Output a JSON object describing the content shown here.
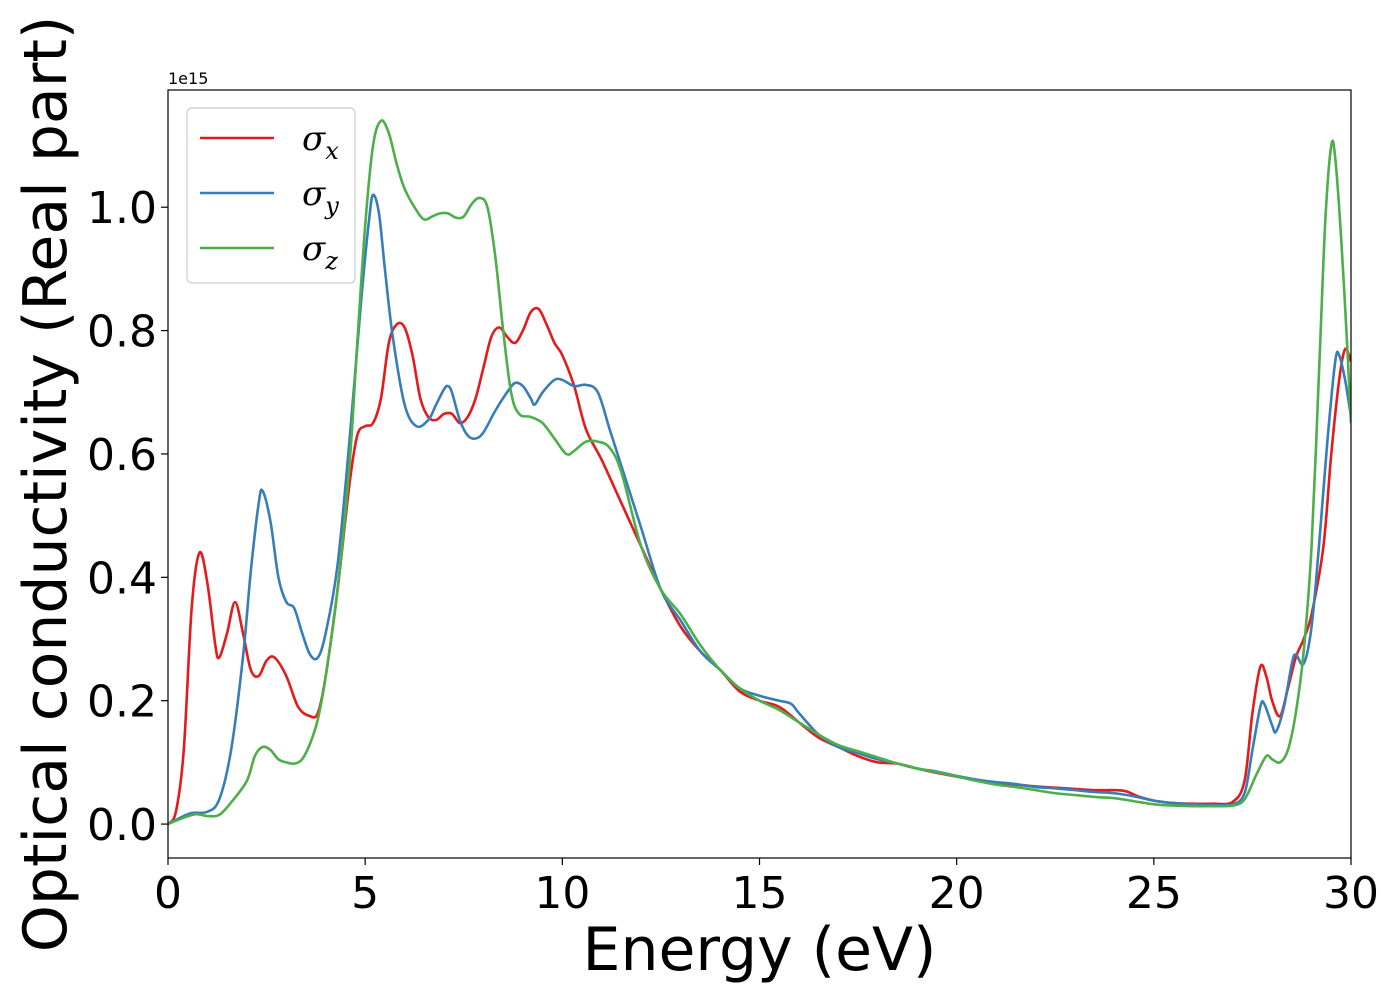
{
  "chart_data": {
    "type": "line",
    "title": "",
    "xlabel": "Energy (eV)",
    "ylabel": "Optical conductivity (Real part)",
    "y_offset_label": "1e15",
    "xlim": [
      0,
      30
    ],
    "ylim": [
      -0.055,
      1.19
    ],
    "xticks": [
      0,
      5,
      10,
      15,
      20,
      25,
      30
    ],
    "xtick_labels": [
      "0",
      "5",
      "10",
      "15",
      "20",
      "25",
      "30"
    ],
    "yticks": [
      0.0,
      0.2,
      0.4,
      0.6,
      0.8,
      1.0
    ],
    "ytick_labels": [
      "0.0",
      "0.2",
      "0.4",
      "0.6",
      "0.8",
      "1.0"
    ],
    "grid": false,
    "legend_position": "top-left",
    "series": [
      {
        "name": "σ",
        "subscript": "x",
        "color": "#e41a1c",
        "points": [
          [
            0,
            0
          ],
          [
            0.2,
            0.02
          ],
          [
            0.4,
            0.12
          ],
          [
            0.6,
            0.35
          ],
          [
            0.8,
            0.44
          ],
          [
            1.0,
            0.39
          ],
          [
            1.2,
            0.29
          ],
          [
            1.3,
            0.27
          ],
          [
            1.5,
            0.31
          ],
          [
            1.7,
            0.36
          ],
          [
            1.9,
            0.31
          ],
          [
            2.1,
            0.25
          ],
          [
            2.3,
            0.24
          ],
          [
            2.5,
            0.265
          ],
          [
            2.7,
            0.27
          ],
          [
            3.0,
            0.24
          ],
          [
            3.3,
            0.19
          ],
          [
            3.6,
            0.175
          ],
          [
            3.8,
            0.18
          ],
          [
            4.0,
            0.24
          ],
          [
            4.3,
            0.38
          ],
          [
            4.6,
            0.55
          ],
          [
            4.8,
            0.63
          ],
          [
            5.0,
            0.645
          ],
          [
            5.2,
            0.65
          ],
          [
            5.4,
            0.69
          ],
          [
            5.6,
            0.78
          ],
          [
            5.8,
            0.81
          ],
          [
            6.0,
            0.805
          ],
          [
            6.2,
            0.76
          ],
          [
            6.4,
            0.69
          ],
          [
            6.6,
            0.66
          ],
          [
            6.8,
            0.655
          ],
          [
            7.0,
            0.665
          ],
          [
            7.2,
            0.665
          ],
          [
            7.4,
            0.65
          ],
          [
            7.6,
            0.66
          ],
          [
            7.8,
            0.69
          ],
          [
            8.0,
            0.74
          ],
          [
            8.2,
            0.79
          ],
          [
            8.4,
            0.805
          ],
          [
            8.6,
            0.79
          ],
          [
            8.8,
            0.78
          ],
          [
            9.0,
            0.8
          ],
          [
            9.2,
            0.83
          ],
          [
            9.4,
            0.835
          ],
          [
            9.6,
            0.81
          ],
          [
            9.8,
            0.78
          ],
          [
            10.0,
            0.76
          ],
          [
            10.3,
            0.71
          ],
          [
            10.6,
            0.64
          ],
          [
            11.0,
            0.59
          ],
          [
            11.5,
            0.52
          ],
          [
            12.0,
            0.45
          ],
          [
            12.5,
            0.38
          ],
          [
            13.0,
            0.32
          ],
          [
            13.5,
            0.28
          ],
          [
            14.0,
            0.25
          ],
          [
            14.5,
            0.215
          ],
          [
            15.0,
            0.2
          ],
          [
            15.5,
            0.19
          ],
          [
            16.0,
            0.165
          ],
          [
            16.5,
            0.14
          ],
          [
            17.0,
            0.125
          ],
          [
            17.5,
            0.11
          ],
          [
            18.0,
            0.1
          ],
          [
            18.5,
            0.098
          ],
          [
            19.0,
            0.09
          ],
          [
            19.5,
            0.083
          ],
          [
            20.0,
            0.077
          ],
          [
            20.5,
            0.072
          ],
          [
            21.0,
            0.067
          ],
          [
            21.5,
            0.064
          ],
          [
            22.0,
            0.061
          ],
          [
            22.5,
            0.059
          ],
          [
            23.0,
            0.057
          ],
          [
            23.5,
            0.055
          ],
          [
            24.0,
            0.055
          ],
          [
            24.3,
            0.053
          ],
          [
            24.6,
            0.045
          ],
          [
            25.0,
            0.038
          ],
          [
            25.5,
            0.034
          ],
          [
            26.0,
            0.033
          ],
          [
            26.5,
            0.033
          ],
          [
            27.0,
            0.036
          ],
          [
            27.3,
            0.07
          ],
          [
            27.5,
            0.18
          ],
          [
            27.7,
            0.255
          ],
          [
            27.85,
            0.24
          ],
          [
            28.0,
            0.2
          ],
          [
            28.2,
            0.175
          ],
          [
            28.4,
            0.22
          ],
          [
            28.6,
            0.27
          ],
          [
            28.8,
            0.3
          ],
          [
            29.0,
            0.34
          ],
          [
            29.3,
            0.45
          ],
          [
            29.5,
            0.6
          ],
          [
            29.7,
            0.72
          ],
          [
            29.85,
            0.77
          ],
          [
            30.0,
            0.75
          ]
        ]
      },
      {
        "name": "σ",
        "subscript": "y",
        "color": "#377eb8",
        "points": [
          [
            0,
            0
          ],
          [
            0.3,
            0.01
          ],
          [
            0.6,
            0.018
          ],
          [
            1.0,
            0.02
          ],
          [
            1.3,
            0.04
          ],
          [
            1.6,
            0.12
          ],
          [
            1.9,
            0.27
          ],
          [
            2.1,
            0.41
          ],
          [
            2.3,
            0.52
          ],
          [
            2.4,
            0.54
          ],
          [
            2.6,
            0.49
          ],
          [
            2.8,
            0.4
          ],
          [
            3.0,
            0.36
          ],
          [
            3.2,
            0.35
          ],
          [
            3.4,
            0.31
          ],
          [
            3.6,
            0.275
          ],
          [
            3.8,
            0.27
          ],
          [
            4.0,
            0.31
          ],
          [
            4.3,
            0.42
          ],
          [
            4.6,
            0.62
          ],
          [
            4.9,
            0.85
          ],
          [
            5.1,
            0.98
          ],
          [
            5.2,
            1.02
          ],
          [
            5.35,
            0.99
          ],
          [
            5.5,
            0.9
          ],
          [
            5.7,
            0.79
          ],
          [
            6.0,
            0.68
          ],
          [
            6.3,
            0.645
          ],
          [
            6.6,
            0.655
          ],
          [
            6.8,
            0.68
          ],
          [
            7.0,
            0.705
          ],
          [
            7.1,
            0.71
          ],
          [
            7.2,
            0.7
          ],
          [
            7.4,
            0.655
          ],
          [
            7.6,
            0.63
          ],
          [
            7.8,
            0.625
          ],
          [
            8.0,
            0.635
          ],
          [
            8.3,
            0.67
          ],
          [
            8.6,
            0.7
          ],
          [
            8.8,
            0.715
          ],
          [
            9.0,
            0.71
          ],
          [
            9.2,
            0.69
          ],
          [
            9.3,
            0.68
          ],
          [
            9.5,
            0.7
          ],
          [
            9.8,
            0.72
          ],
          [
            10.0,
            0.72
          ],
          [
            10.3,
            0.71
          ],
          [
            10.6,
            0.712
          ],
          [
            10.9,
            0.7
          ],
          [
            11.2,
            0.64
          ],
          [
            11.5,
            0.58
          ],
          [
            12.0,
            0.48
          ],
          [
            12.5,
            0.38
          ],
          [
            13.0,
            0.33
          ],
          [
            13.5,
            0.28
          ],
          [
            14.0,
            0.25
          ],
          [
            14.5,
            0.22
          ],
          [
            15.0,
            0.208
          ],
          [
            15.5,
            0.2
          ],
          [
            15.8,
            0.195
          ],
          [
            16.0,
            0.18
          ],
          [
            16.5,
            0.145
          ],
          [
            17.0,
            0.125
          ],
          [
            17.5,
            0.115
          ],
          [
            18.0,
            0.105
          ],
          [
            18.5,
            0.098
          ],
          [
            19.0,
            0.09
          ],
          [
            19.5,
            0.085
          ],
          [
            20.0,
            0.078
          ],
          [
            20.5,
            0.072
          ],
          [
            21.0,
            0.068
          ],
          [
            21.5,
            0.065
          ],
          [
            22.0,
            0.06
          ],
          [
            22.5,
            0.058
          ],
          [
            23.0,
            0.055
          ],
          [
            23.5,
            0.052
          ],
          [
            24.0,
            0.05
          ],
          [
            24.5,
            0.045
          ],
          [
            25.0,
            0.038
          ],
          [
            25.5,
            0.034
          ],
          [
            26.0,
            0.032
          ],
          [
            26.5,
            0.031
          ],
          [
            27.0,
            0.032
          ],
          [
            27.3,
            0.05
          ],
          [
            27.5,
            0.12
          ],
          [
            27.7,
            0.19
          ],
          [
            27.8,
            0.195
          ],
          [
            28.0,
            0.16
          ],
          [
            28.1,
            0.15
          ],
          [
            28.3,
            0.19
          ],
          [
            28.5,
            0.26
          ],
          [
            28.6,
            0.275
          ],
          [
            28.8,
            0.26
          ],
          [
            29.0,
            0.32
          ],
          [
            29.2,
            0.46
          ],
          [
            29.4,
            0.62
          ],
          [
            29.6,
            0.75
          ],
          [
            29.7,
            0.76
          ],
          [
            29.85,
            0.72
          ],
          [
            30.0,
            0.66
          ]
        ]
      },
      {
        "name": "σ",
        "subscript": "z",
        "color": "#4daf4a",
        "points": [
          [
            0,
            0
          ],
          [
            0.3,
            0.008
          ],
          [
            0.7,
            0.016
          ],
          [
            1.0,
            0.013
          ],
          [
            1.3,
            0.015
          ],
          [
            1.6,
            0.035
          ],
          [
            2.0,
            0.07
          ],
          [
            2.2,
            0.11
          ],
          [
            2.4,
            0.125
          ],
          [
            2.6,
            0.12
          ],
          [
            2.8,
            0.105
          ],
          [
            3.0,
            0.1
          ],
          [
            3.2,
            0.098
          ],
          [
            3.4,
            0.105
          ],
          [
            3.6,
            0.13
          ],
          [
            3.8,
            0.17
          ],
          [
            4.0,
            0.24
          ],
          [
            4.3,
            0.38
          ],
          [
            4.6,
            0.58
          ],
          [
            4.8,
            0.78
          ],
          [
            5.0,
            0.97
          ],
          [
            5.2,
            1.1
          ],
          [
            5.4,
            1.14
          ],
          [
            5.6,
            1.12
          ],
          [
            5.8,
            1.07
          ],
          [
            6.0,
            1.03
          ],
          [
            6.3,
            0.995
          ],
          [
            6.5,
            0.98
          ],
          [
            6.7,
            0.985
          ],
          [
            6.9,
            0.99
          ],
          [
            7.1,
            0.99
          ],
          [
            7.3,
            0.983
          ],
          [
            7.5,
            0.985
          ],
          [
            7.7,
            1.005
          ],
          [
            7.9,
            1.015
          ],
          [
            8.1,
            1.0
          ],
          [
            8.3,
            0.92
          ],
          [
            8.5,
            0.8
          ],
          [
            8.7,
            0.7
          ],
          [
            8.9,
            0.665
          ],
          [
            9.2,
            0.66
          ],
          [
            9.5,
            0.65
          ],
          [
            9.8,
            0.625
          ],
          [
            10.1,
            0.6
          ],
          [
            10.3,
            0.605
          ],
          [
            10.6,
            0.62
          ],
          [
            10.9,
            0.62
          ],
          [
            11.2,
            0.61
          ],
          [
            11.5,
            0.57
          ],
          [
            12.0,
            0.45
          ],
          [
            12.5,
            0.38
          ],
          [
            13.0,
            0.34
          ],
          [
            13.5,
            0.29
          ],
          [
            14.0,
            0.25
          ],
          [
            14.5,
            0.22
          ],
          [
            15.0,
            0.2
          ],
          [
            15.5,
            0.185
          ],
          [
            16.0,
            0.165
          ],
          [
            16.5,
            0.145
          ],
          [
            17.0,
            0.128
          ],
          [
            17.5,
            0.118
          ],
          [
            18.0,
            0.108
          ],
          [
            18.5,
            0.098
          ],
          [
            19.0,
            0.09
          ],
          [
            19.5,
            0.084
          ],
          [
            20.0,
            0.077
          ],
          [
            20.5,
            0.07
          ],
          [
            21.0,
            0.064
          ],
          [
            21.5,
            0.06
          ],
          [
            22.0,
            0.055
          ],
          [
            22.5,
            0.05
          ],
          [
            23.0,
            0.047
          ],
          [
            23.5,
            0.044
          ],
          [
            24.0,
            0.042
          ],
          [
            24.5,
            0.037
          ],
          [
            25.0,
            0.032
          ],
          [
            25.5,
            0.03
          ],
          [
            26.0,
            0.029
          ],
          [
            26.5,
            0.029
          ],
          [
            27.0,
            0.03
          ],
          [
            27.3,
            0.04
          ],
          [
            27.6,
            0.08
          ],
          [
            27.85,
            0.11
          ],
          [
            28.0,
            0.105
          ],
          [
            28.2,
            0.1
          ],
          [
            28.4,
            0.12
          ],
          [
            28.6,
            0.18
          ],
          [
            28.8,
            0.28
          ],
          [
            29.0,
            0.45
          ],
          [
            29.2,
            0.75
          ],
          [
            29.35,
            0.98
          ],
          [
            29.5,
            1.1
          ],
          [
            29.6,
            1.08
          ],
          [
            29.75,
            0.95
          ],
          [
            29.9,
            0.78
          ],
          [
            30.0,
            0.65
          ]
        ]
      }
    ]
  }
}
